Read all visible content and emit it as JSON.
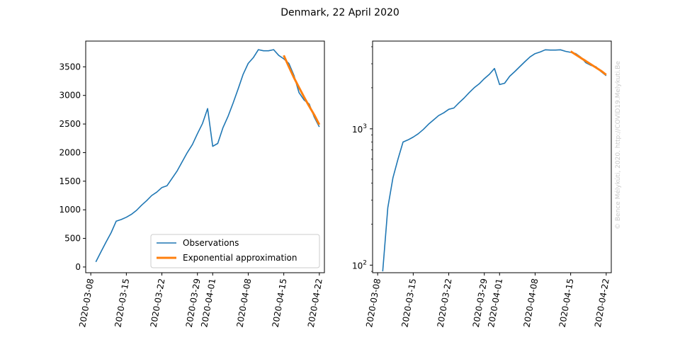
{
  "figure": {
    "title": "Denmark, 22 April 2020",
    "watermark": "© Bence Mélykúti, 2020. http://COVID19.Melykuti.Be"
  },
  "colors": {
    "observations": "#1f77b4",
    "approximation": "#ff7f0e",
    "watermark": "#c8c8c8"
  },
  "chart_data": [
    {
      "type": "line",
      "panel": "left",
      "yscale": "linear",
      "xlabel": "",
      "ylabel": "",
      "grid": false,
      "legend_position": "lower-right",
      "xlim": [
        "2020-03-07",
        "2020-04-23"
      ],
      "ylim": [
        -100,
        3950
      ],
      "xticks": [
        "2020-03-08",
        "2020-03-15",
        "2020-03-22",
        "2020-03-29",
        "2020-04-01",
        "2020-04-08",
        "2020-04-15",
        "2020-04-22"
      ],
      "yticks": [
        0,
        500,
        1000,
        1500,
        2000,
        2500,
        3000,
        3500
      ],
      "ytick_labels": [
        "0",
        "500",
        "1000",
        "1500",
        "2000",
        "2500",
        "3000",
        "3500"
      ],
      "series": [
        {
          "name": "Observations",
          "x": [
            "2020-03-09",
            "2020-03-10",
            "2020-03-11",
            "2020-03-12",
            "2020-03-13",
            "2020-03-14",
            "2020-03-15",
            "2020-03-16",
            "2020-03-17",
            "2020-03-18",
            "2020-03-19",
            "2020-03-20",
            "2020-03-21",
            "2020-03-22",
            "2020-03-23",
            "2020-03-24",
            "2020-03-25",
            "2020-03-26",
            "2020-03-27",
            "2020-03-28",
            "2020-03-29",
            "2020-03-30",
            "2020-03-31",
            "2020-04-01",
            "2020-04-02",
            "2020-04-03",
            "2020-04-04",
            "2020-04-05",
            "2020-04-06",
            "2020-04-07",
            "2020-04-08",
            "2020-04-09",
            "2020-04-10",
            "2020-04-11",
            "2020-04-12",
            "2020-04-13",
            "2020-04-14",
            "2020-04-15",
            "2020-04-16",
            "2020-04-17",
            "2020-04-18",
            "2020-04-19",
            "2020-04-20",
            "2020-04-21",
            "2020-04-22"
          ],
          "y": [
            90,
            264,
            436,
            600,
            800,
            830,
            870,
            920,
            990,
            1080,
            1160,
            1250,
            1310,
            1390,
            1420,
            1550,
            1680,
            1840,
            2000,
            2140,
            2330,
            2510,
            2770,
            2110,
            2160,
            2430,
            2630,
            2860,
            3110,
            3370,
            3560,
            3660,
            3800,
            3780,
            3780,
            3800,
            3700,
            3640,
            3560,
            3350,
            3050,
            2920,
            2850,
            2620,
            2450
          ]
        },
        {
          "name": "Exponential approximation",
          "x": [
            "2020-04-15",
            "2020-04-16",
            "2020-04-17",
            "2020-04-18",
            "2020-04-19",
            "2020-04-20",
            "2020-04-21",
            "2020-04-22"
          ],
          "y": [
            3700,
            3500,
            3310,
            3140,
            2970,
            2810,
            2660,
            2490
          ]
        }
      ]
    },
    {
      "type": "line",
      "panel": "right",
      "yscale": "log",
      "xlabel": "",
      "ylabel": "",
      "grid": false,
      "xlim": [
        "2020-03-07",
        "2020-04-23"
      ],
      "ylim": [
        88,
        4400
      ],
      "xticks": [
        "2020-03-08",
        "2020-03-15",
        "2020-03-22",
        "2020-03-29",
        "2020-04-01",
        "2020-04-08",
        "2020-04-15",
        "2020-04-22"
      ],
      "yticks_major": [
        {
          "value": 100,
          "base": "10",
          "exp": "2"
        },
        {
          "value": 1000,
          "base": "10",
          "exp": "3"
        }
      ],
      "series": [
        {
          "name": "Observations",
          "x": [
            "2020-03-09",
            "2020-03-10",
            "2020-03-11",
            "2020-03-12",
            "2020-03-13",
            "2020-03-14",
            "2020-03-15",
            "2020-03-16",
            "2020-03-17",
            "2020-03-18",
            "2020-03-19",
            "2020-03-20",
            "2020-03-21",
            "2020-03-22",
            "2020-03-23",
            "2020-03-24",
            "2020-03-25",
            "2020-03-26",
            "2020-03-27",
            "2020-03-28",
            "2020-03-29",
            "2020-03-30",
            "2020-03-31",
            "2020-04-01",
            "2020-04-02",
            "2020-04-03",
            "2020-04-04",
            "2020-04-05",
            "2020-04-06",
            "2020-04-07",
            "2020-04-08",
            "2020-04-09",
            "2020-04-10",
            "2020-04-11",
            "2020-04-12",
            "2020-04-13",
            "2020-04-14",
            "2020-04-15",
            "2020-04-16",
            "2020-04-17",
            "2020-04-18",
            "2020-04-19",
            "2020-04-20",
            "2020-04-21",
            "2020-04-22"
          ],
          "y": [
            90,
            264,
            436,
            600,
            800,
            830,
            870,
            920,
            990,
            1080,
            1160,
            1250,
            1310,
            1390,
            1420,
            1550,
            1680,
            1840,
            2000,
            2140,
            2330,
            2510,
            2770,
            2110,
            2160,
            2430,
            2630,
            2860,
            3110,
            3370,
            3560,
            3660,
            3800,
            3780,
            3780,
            3800,
            3700,
            3640,
            3560,
            3350,
            3050,
            2920,
            2850,
            2620,
            2450
          ]
        },
        {
          "name": "Exponential approximation",
          "x": [
            "2020-04-15",
            "2020-04-16",
            "2020-04-17",
            "2020-04-18",
            "2020-04-19",
            "2020-04-20",
            "2020-04-21",
            "2020-04-22"
          ],
          "y": [
            3700,
            3500,
            3310,
            3140,
            2970,
            2810,
            2660,
            2490
          ]
        }
      ]
    }
  ]
}
